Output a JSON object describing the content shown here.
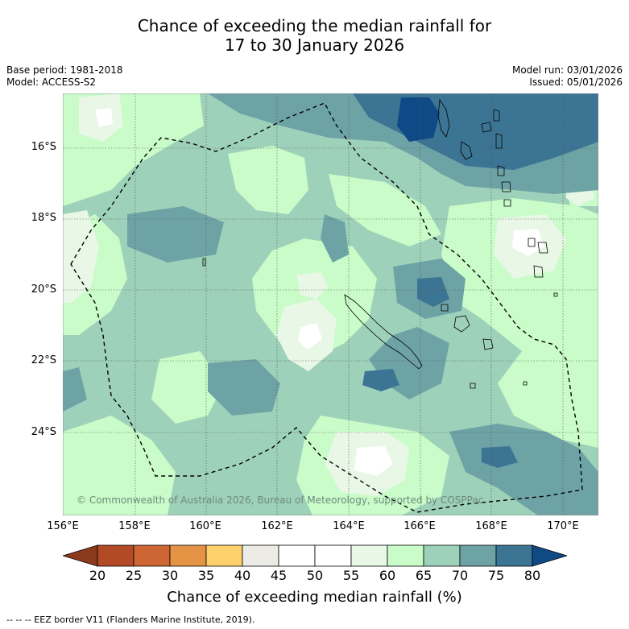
{
  "title": {
    "line1": "Chance of exceeding the median rainfall for",
    "line2": "17 to 30 January 2026"
  },
  "meta_left": {
    "base_period": "Base period: 1981-2018",
    "model": "Model: ACCESS-S2"
  },
  "meta_right": {
    "model_run": "Model run: 03/01/2026",
    "issued": "Issued: 05/01/2026"
  },
  "axes": {
    "lat_labels": [
      "16°S",
      "18°S",
      "20°S",
      "22°S",
      "24°S"
    ],
    "lon_labels": [
      "156°E",
      "158°E",
      "160°E",
      "162°E",
      "164°E",
      "166°E",
      "168°E",
      "170°E"
    ]
  },
  "copyright": "© Commonwealth of Australia 2026, Bureau of Meteorology, supported by COSPPac",
  "colorbar": {
    "title": "Chance of exceeding median rainfall (%)",
    "ticks": [
      "20",
      "25",
      "30",
      "35",
      "40",
      "45",
      "50",
      "55",
      "60",
      "65",
      "70",
      "75",
      "80"
    ],
    "colors": [
      "#8c3a1e",
      "#b24a25",
      "#cd6632",
      "#e59446",
      "#fed06c",
      "#ecebe6",
      "#ffffff",
      "#ffffff",
      "#e9f7e6",
      "#c9fcc8",
      "#9ed1b9",
      "#6ea3a6",
      "#3c7494",
      "#0f4a86"
    ]
  },
  "legend_note": "--  --  -- EEZ border V11 (Flanders Marine Institute, 2019)."
}
